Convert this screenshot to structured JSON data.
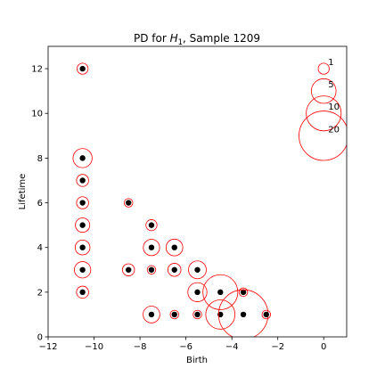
{
  "chart_data": {
    "type": "scatter",
    "title_prefix": "PD for ",
    "title_symbol": "H",
    "title_subscript": "1",
    "title_suffix": ", Sample 1209",
    "xlabel": "Birth",
    "ylabel": "Lifetime",
    "xlim": [
      -12,
      1
    ],
    "ylim": [
      0,
      13
    ],
    "x_ticks": [
      -12,
      -10,
      -8,
      -6,
      -4,
      -2,
      0
    ],
    "y_ticks": [
      0,
      2,
      4,
      6,
      8,
      10,
      12
    ],
    "x_tick_labels": [
      "−12",
      "−10",
      "−8",
      "−6",
      "−4",
      "−2",
      "0"
    ],
    "y_tick_labels": [
      "0",
      "2",
      "4",
      "6",
      "8",
      "10",
      "12"
    ],
    "grid": false,
    "marker_color": "#000000",
    "circle_color": "#ff0000",
    "series": [
      {
        "name": "H1 features",
        "points": [
          {
            "x": -10.5,
            "y": 12,
            "count": 1
          },
          {
            "x": -10.5,
            "y": 8,
            "count": 3
          },
          {
            "x": -10.5,
            "y": 7,
            "count": 1.2
          },
          {
            "x": -10.5,
            "y": 6,
            "count": 1.2
          },
          {
            "x": -10.5,
            "y": 5,
            "count": 1.7
          },
          {
            "x": -10.5,
            "y": 4,
            "count": 1.8
          },
          {
            "x": -10.5,
            "y": 3,
            "count": 2.2
          },
          {
            "x": -10.5,
            "y": 2,
            "count": 1.2
          },
          {
            "x": -8.5,
            "y": 6,
            "count": 0.6
          },
          {
            "x": -8.5,
            "y": 3,
            "count": 1.2
          },
          {
            "x": -7.5,
            "y": 5,
            "count": 1
          },
          {
            "x": -7.5,
            "y": 4,
            "count": 2.2
          },
          {
            "x": -7.5,
            "y": 3,
            "count": 0.6
          },
          {
            "x": -7.5,
            "y": 1,
            "count": 2.3
          },
          {
            "x": -6.5,
            "y": 4,
            "count": 2.3
          },
          {
            "x": -6.5,
            "y": 3,
            "count": 1.4
          },
          {
            "x": -6.5,
            "y": 1,
            "count": 0.6
          },
          {
            "x": -5.5,
            "y": 3,
            "count": 2.6
          },
          {
            "x": -5.5,
            "y": 2,
            "count": 3
          },
          {
            "x": -5.5,
            "y": 1,
            "count": 0.6
          },
          {
            "x": -4.5,
            "y": 2,
            "count": 10
          },
          {
            "x": -4.5,
            "y": 1,
            "count": 7
          },
          {
            "x": -3.5,
            "y": 2,
            "count": 0.6
          },
          {
            "x": -3.5,
            "y": 1,
            "count": 20
          },
          {
            "x": -2.5,
            "y": 1,
            "count": 0.6
          }
        ]
      }
    ],
    "legend": {
      "placement": "top-right",
      "entries": [
        {
          "label": "1",
          "count": 1,
          "x": 0,
          "y": 12
        },
        {
          "label": "5",
          "count": 5,
          "x": 0,
          "y": 11
        },
        {
          "label": "10",
          "count": 10,
          "x": 0,
          "y": 10
        },
        {
          "label": "20",
          "count": 20,
          "x": 0,
          "y": 9
        }
      ]
    }
  }
}
